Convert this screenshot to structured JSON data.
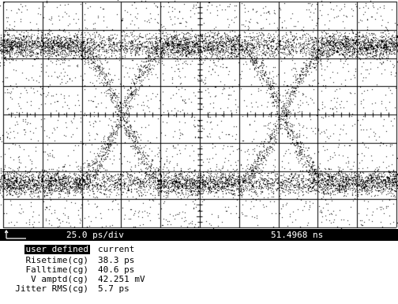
{
  "display": {
    "timebase": "25.0 ps/div",
    "time_position": "51.4968 ns",
    "colors": {
      "trace": "#000000",
      "background": "#ffffff",
      "grid": "#000000"
    },
    "icons": [
      "reference-marker-icon"
    ]
  },
  "measurements": {
    "header": {
      "label": "user defined",
      "value": "current"
    },
    "rows": [
      {
        "label": "Risetime(cg)",
        "value": "38.3 ps"
      },
      {
        "label": "Falltime(cg)",
        "value": "40.6 ps"
      },
      {
        "label": "V amptd(cg)",
        "value": "42.251 mV"
      },
      {
        "label": "Jitter RMS(cg)",
        "value": "5.7 ps"
      }
    ]
  }
}
